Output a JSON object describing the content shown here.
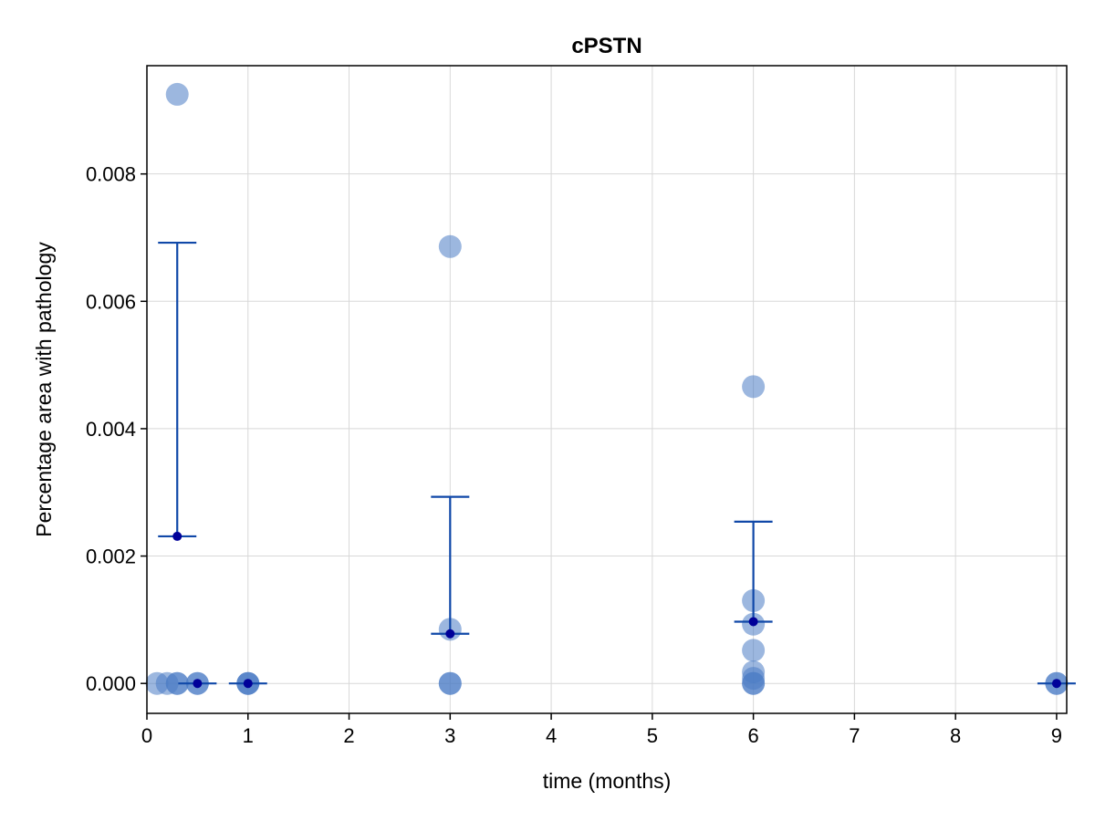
{
  "chart_data": {
    "type": "scatter",
    "title": "cPSTN",
    "xlabel": "time (months)",
    "ylabel": "Percentage area with pathology",
    "xlim": [
      0,
      9.1
    ],
    "ylim": [
      -0.00047,
      0.0097
    ],
    "x_ticks": [
      0,
      1,
      2,
      3,
      4,
      5,
      6,
      7,
      8,
      9
    ],
    "y_ticks": [
      0.0,
      0.002,
      0.004,
      0.006,
      0.008
    ],
    "y_tick_labels": [
      "0.000",
      "0.002",
      "0.004",
      "0.006",
      "0.008"
    ],
    "grid": true,
    "legend": "none",
    "colors": {
      "points": "#4a7cc4",
      "error_bars": "#1048a8",
      "means": "#000099",
      "grid": "#d8d8d8",
      "axes": "#000000"
    },
    "points": [
      {
        "x": 0.3,
        "y": 0.00925
      },
      {
        "x": 3.0,
        "y": 0.00686
      },
      {
        "x": 3.0,
        "y": 0.00085
      },
      {
        "x": 6.0,
        "y": 0.00466
      },
      {
        "x": 6.0,
        "y": 0.0013
      },
      {
        "x": 6.0,
        "y": 0.00093
      },
      {
        "x": 6.0,
        "y": 0.00052
      },
      {
        "x": 6.0,
        "y": 0.00018
      },
      {
        "x": 6.0,
        "y": 8e-05
      },
      {
        "x": 6.0,
        "y": 0.0
      },
      {
        "x": 6.0,
        "y": 0.0
      },
      {
        "x": 0.1,
        "y": 0.0
      },
      {
        "x": 0.2,
        "y": 0.0
      },
      {
        "x": 0.3,
        "y": 0.0
      },
      {
        "x": 0.3,
        "y": 0.0
      },
      {
        "x": 0.5,
        "y": 0.0
      },
      {
        "x": 0.5,
        "y": 0.0
      },
      {
        "x": 1.0,
        "y": 0.0
      },
      {
        "x": 1.0,
        "y": 0.0
      },
      {
        "x": 1.0,
        "y": 0.0
      },
      {
        "x": 3.0,
        "y": 0.0
      },
      {
        "x": 3.0,
        "y": 0.0
      },
      {
        "x": 9.0,
        "y": 0.0
      },
      {
        "x": 9.0,
        "y": 0.0
      }
    ],
    "summary": [
      {
        "x": 0.3,
        "mean": 0.00231,
        "upper": 0.00692
      },
      {
        "x": 3.0,
        "mean": 0.00078,
        "upper": 0.00293
      },
      {
        "x": 6.0,
        "mean": 0.00097,
        "upper": 0.00254
      },
      {
        "x": 0.5,
        "mean": 0.0,
        "upper": 0.0
      },
      {
        "x": 1.0,
        "mean": 0.0,
        "upper": 0.0
      },
      {
        "x": 9.0,
        "mean": 0.0,
        "upper": 0.0
      }
    ]
  }
}
